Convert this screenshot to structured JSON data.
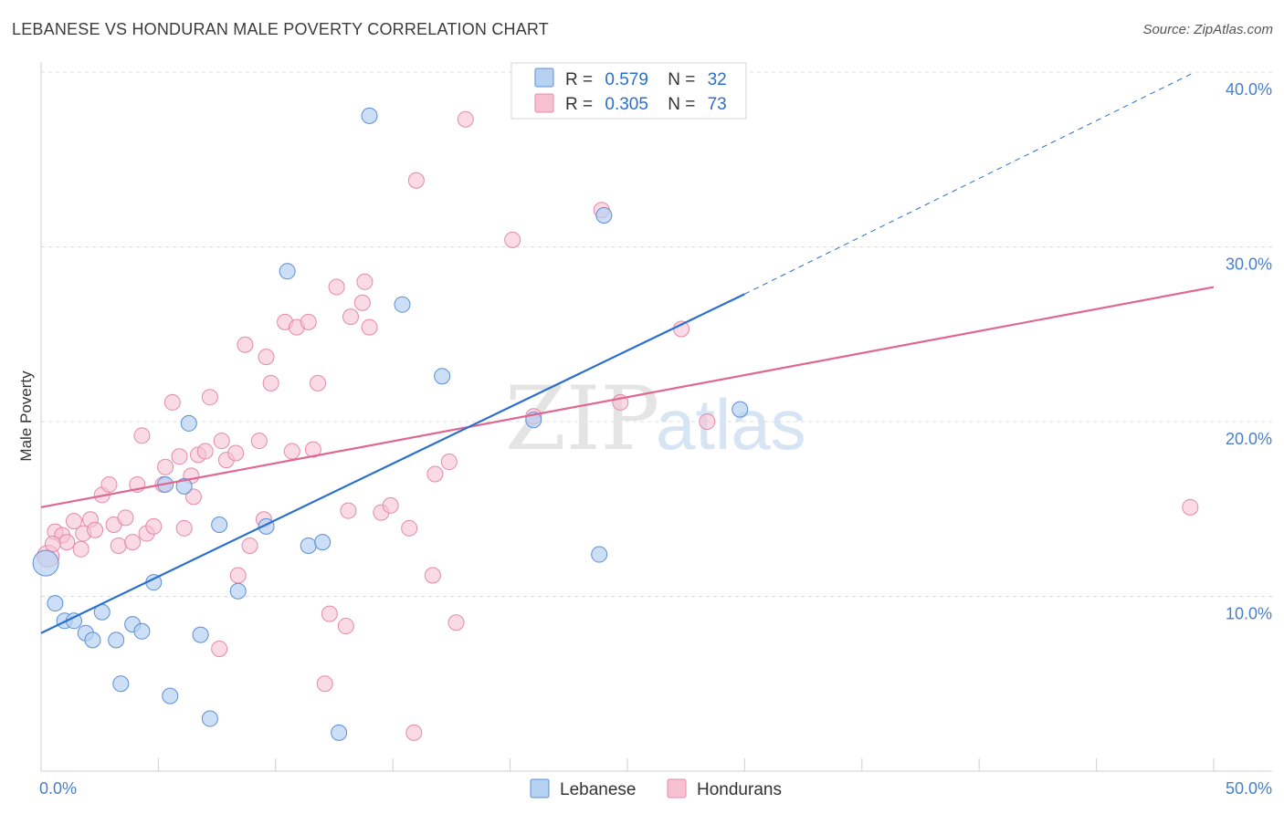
{
  "title": "LEBANESE VS HONDURAN MALE POVERTY CORRELATION CHART",
  "source": "Source: ZipAtlas.com",
  "watermark": {
    "zip": "ZIP",
    "atlas": "atlas"
  },
  "colors": {
    "lebanese_fill": "#b7d1f2",
    "lebanese_stroke": "#5b8fd4",
    "lebanese_line": "#2a6fcc",
    "hondurans_fill": "#f7c1d2",
    "hondurans_stroke": "#e38aa9",
    "hondurans_line": "#e0678f",
    "tick_label": "#4a7fc8",
    "grid": "#dcdcdc"
  },
  "chart_data": {
    "type": "scatter",
    "title": "LEBANESE VS HONDURAN MALE POVERTY CORRELATION CHART",
    "xlabel": "",
    "ylabel": "Male Poverty",
    "xlim": [
      0,
      50
    ],
    "ylim": [
      0,
      40
    ],
    "x_tick_labels": [
      "0.0%",
      "50.0%"
    ],
    "y_ticks": [
      10,
      20,
      30,
      40
    ],
    "y_tick_labels": [
      "10.0%",
      "20.0%",
      "30.0%",
      "40.0%"
    ],
    "grid": true,
    "legend_position": "top-center",
    "legend": [
      {
        "r_label": "R =",
        "r_value": "0.579",
        "n_label": "N =",
        "n_value": "32"
      },
      {
        "r_label": "R =",
        "r_value": "0.305",
        "n_label": "N =",
        "n_value": "73"
      }
    ],
    "bottom_legend": [
      "Lebanese",
      "Hondurans"
    ],
    "series": [
      {
        "name": "Lebanese",
        "trend": {
          "x": [
            0,
            30
          ],
          "y": [
            7.9,
            27.3
          ],
          "dashed_extension_to": [
            49.2,
            40
          ]
        },
        "points": [
          [
            0.2,
            11.9
          ],
          [
            0.6,
            9.6
          ],
          [
            1.0,
            8.6
          ],
          [
            1.4,
            8.6
          ],
          [
            1.9,
            7.9
          ],
          [
            2.2,
            7.5
          ],
          [
            2.6,
            9.1
          ],
          [
            3.2,
            7.5
          ],
          [
            3.4,
            5.0
          ],
          [
            3.9,
            8.4
          ],
          [
            4.3,
            8.0
          ],
          [
            4.8,
            10.8
          ],
          [
            5.3,
            16.4
          ],
          [
            5.5,
            4.3
          ],
          [
            6.1,
            16.3
          ],
          [
            6.3,
            19.9
          ],
          [
            6.8,
            7.8
          ],
          [
            7.2,
            3.0
          ],
          [
            7.6,
            14.1
          ],
          [
            8.4,
            10.3
          ],
          [
            9.6,
            14.0
          ],
          [
            10.5,
            28.6
          ],
          [
            11.4,
            12.9
          ],
          [
            12.0,
            13.1
          ],
          [
            12.7,
            2.2
          ],
          [
            14.0,
            37.5
          ],
          [
            15.4,
            26.7
          ],
          [
            17.1,
            22.6
          ],
          [
            21.0,
            20.1
          ],
          [
            23.8,
            12.4
          ],
          [
            24.0,
            31.8
          ],
          [
            29.8,
            20.7
          ]
        ]
      },
      {
        "name": "Hondurans",
        "trend": {
          "x": [
            0,
            50
          ],
          "y": [
            15.1,
            27.7
          ]
        },
        "points": [
          [
            0.3,
            12.3
          ],
          [
            0.6,
            13.7
          ],
          [
            0.9,
            13.5
          ],
          [
            1.1,
            13.1
          ],
          [
            1.4,
            14.3
          ],
          [
            1.7,
            12.7
          ],
          [
            1.8,
            13.6
          ],
          [
            2.1,
            14.4
          ],
          [
            2.3,
            13.8
          ],
          [
            2.6,
            15.8
          ],
          [
            2.9,
            16.4
          ],
          [
            3.1,
            14.1
          ],
          [
            3.3,
            12.9
          ],
          [
            3.6,
            14.5
          ],
          [
            3.9,
            13.1
          ],
          [
            4.1,
            16.4
          ],
          [
            4.3,
            19.2
          ],
          [
            4.5,
            13.6
          ],
          [
            4.8,
            14.0
          ],
          [
            5.2,
            16.4
          ],
          [
            5.3,
            17.4
          ],
          [
            5.6,
            21.1
          ],
          [
            5.9,
            18.0
          ],
          [
            6.1,
            13.9
          ],
          [
            6.4,
            16.9
          ],
          [
            6.5,
            15.7
          ],
          [
            6.7,
            18.1
          ],
          [
            7.0,
            18.3
          ],
          [
            7.2,
            21.4
          ],
          [
            7.6,
            7.0
          ],
          [
            7.7,
            18.9
          ],
          [
            7.9,
            17.8
          ],
          [
            8.3,
            18.2
          ],
          [
            8.4,
            11.2
          ],
          [
            8.7,
            24.4
          ],
          [
            8.9,
            12.9
          ],
          [
            9.3,
            18.9
          ],
          [
            9.5,
            14.4
          ],
          [
            9.6,
            23.7
          ],
          [
            9.8,
            22.2
          ],
          [
            10.4,
            25.7
          ],
          [
            10.7,
            18.3
          ],
          [
            10.9,
            25.4
          ],
          [
            11.4,
            25.7
          ],
          [
            11.6,
            18.4
          ],
          [
            11.8,
            22.2
          ],
          [
            12.1,
            5.0
          ],
          [
            12.3,
            9.0
          ],
          [
            12.6,
            27.7
          ],
          [
            13.0,
            8.3
          ],
          [
            13.1,
            14.9
          ],
          [
            13.2,
            26.0
          ],
          [
            13.7,
            26.8
          ],
          [
            13.8,
            28.0
          ],
          [
            14.0,
            25.4
          ],
          [
            14.5,
            14.8
          ],
          [
            14.9,
            15.2
          ],
          [
            15.7,
            13.9
          ],
          [
            15.9,
            2.2
          ],
          [
            16.0,
            33.8
          ],
          [
            16.7,
            11.2
          ],
          [
            16.8,
            17.0
          ],
          [
            17.4,
            17.7
          ],
          [
            17.7,
            8.5
          ],
          [
            18.1,
            37.3
          ],
          [
            20.1,
            30.4
          ],
          [
            21.0,
            20.3
          ],
          [
            23.9,
            32.1
          ],
          [
            24.7,
            21.1
          ],
          [
            27.3,
            25.3
          ],
          [
            28.4,
            20.0
          ],
          [
            49.0,
            15.1
          ],
          [
            0.5,
            13.0
          ]
        ]
      }
    ]
  }
}
